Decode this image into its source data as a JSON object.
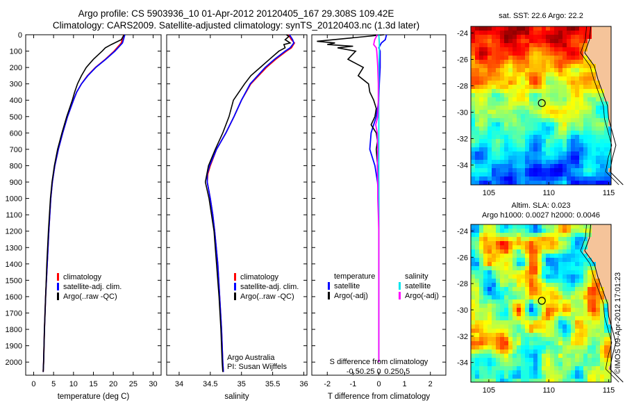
{
  "header": {
    "title_line1": "Argo profile: CS 5903936_10 01-Apr-2012 20120405_167 29.308S 109.42E",
    "title_line2": "Climatology: CARS2009. Satellite-adjusted climatology: synTS_20120403.nc (1.3d later)"
  },
  "colors": {
    "climatology": "#ff0000",
    "satellite": "#0000ff",
    "argo": "#000000",
    "salinity_satellite": "#00e5ee",
    "salinity_argo": "#ff00ff",
    "land": "#f5c49a"
  },
  "chart_data": [
    {
      "type": "line",
      "id": "temperature",
      "xlabel": "temperature (deg C)",
      "ylabel": "",
      "xlim": [
        -2,
        32
      ],
      "ylim": [
        2080,
        0
      ],
      "xticks": [
        0,
        5,
        10,
        15,
        20,
        25,
        30
      ],
      "yticks": [
        0,
        100,
        200,
        300,
        400,
        500,
        600,
        700,
        800,
        900,
        1000,
        1100,
        1200,
        1300,
        1400,
        1500,
        1600,
        1700,
        1800,
        1900,
        2000
      ],
      "legend": [
        "climatology",
        "satellite-adj. clim.",
        "Argo(..raw -QC)"
      ],
      "series": [
        {
          "name": "climatology",
          "color": "#ff0000",
          "depth": [
            0,
            50,
            100,
            150,
            200,
            250,
            300,
            350,
            400,
            500,
            600,
            700,
            800,
            900,
            1000,
            1200,
            1400,
            1600,
            1800,
            2000,
            2060
          ],
          "values": [
            22.6,
            22.0,
            20.2,
            18.0,
            15.5,
            13.5,
            12.0,
            10.8,
            10.0,
            8.5,
            7.3,
            6.2,
            5.3,
            4.7,
            4.3,
            3.8,
            3.4,
            3.0,
            2.7,
            2.5,
            2.4
          ]
        },
        {
          "name": "satellite-adj. clim.",
          "color": "#0000ff",
          "depth": [
            0,
            50,
            100,
            150,
            200,
            250,
            300,
            350,
            400,
            500,
            600,
            700,
            800,
            900,
            1000,
            1200,
            1400,
            1600,
            1800,
            2000,
            2060
          ],
          "values": [
            22.9,
            22.3,
            20.4,
            18.1,
            15.6,
            13.6,
            12.0,
            10.8,
            10.0,
            8.5,
            7.3,
            6.2,
            5.3,
            4.7,
            4.3,
            3.8,
            3.4,
            3.0,
            2.7,
            2.5,
            2.4
          ]
        },
        {
          "name": "Argo(..raw -QC)",
          "color": "#000000",
          "depth": [
            0,
            30,
            60,
            80,
            100,
            150,
            200,
            250,
            300,
            350,
            400,
            500,
            600,
            700,
            800,
            900,
            1000,
            1200,
            1400,
            1600,
            1800,
            2000,
            2060
          ],
          "values": [
            22.7,
            22.0,
            19.5,
            18.0,
            17.2,
            15.0,
            13.2,
            12.0,
            11.0,
            10.3,
            9.7,
            8.3,
            7.1,
            6.0,
            5.2,
            4.6,
            4.2,
            3.7,
            3.3,
            3.0,
            2.7,
            2.5,
            2.4
          ]
        }
      ],
      "annotations": []
    },
    {
      "type": "line",
      "id": "salinity",
      "xlabel": "salinity",
      "ylabel": "",
      "xlim": [
        33.8,
        36.05
      ],
      "ylim": [
        2080,
        0
      ],
      "xticks": [
        34,
        34.5,
        35,
        35.5,
        36
      ],
      "legend": [
        "climatology",
        "satellite-adj. clim.",
        "Argo(..raw -QC)"
      ],
      "series": [
        {
          "name": "climatology",
          "color": "#ff0000",
          "depth": [
            0,
            30,
            50,
            80,
            100,
            150,
            200,
            300,
            400,
            500,
            600,
            700,
            800,
            850,
            900,
            1000,
            1100,
            1200,
            1400,
            1600,
            1800,
            2000,
            2060
          ],
          "values": [
            35.75,
            35.8,
            35.85,
            35.8,
            35.72,
            35.55,
            35.4,
            35.15,
            35.0,
            34.88,
            34.75,
            34.6,
            34.5,
            34.46,
            34.45,
            34.5,
            34.54,
            34.57,
            34.62,
            34.65,
            34.68,
            34.7,
            34.71
          ]
        },
        {
          "name": "satellite-adj. clim.",
          "color": "#0000ff",
          "depth": [
            0,
            30,
            50,
            80,
            100,
            150,
            200,
            300,
            400,
            500,
            600,
            700,
            800,
            850,
            900,
            1000,
            1100,
            1200,
            1400,
            1600,
            1800,
            2000,
            2060
          ],
          "values": [
            35.77,
            35.82,
            35.84,
            35.78,
            35.7,
            35.53,
            35.38,
            35.14,
            35.0,
            34.88,
            34.75,
            34.6,
            34.49,
            34.45,
            34.45,
            34.5,
            34.54,
            34.57,
            34.62,
            34.65,
            34.68,
            34.7,
            34.71
          ]
        },
        {
          "name": "Argo(..raw -QC)",
          "color": "#000000",
          "depth": [
            0,
            10,
            30,
            50,
            60,
            80,
            100,
            150,
            200,
            250,
            300,
            400,
            500,
            600,
            700,
            800,
            900,
            1000,
            1100,
            1200,
            1400,
            1600,
            1800,
            2000,
            2060
          ],
          "values": [
            35.72,
            35.76,
            35.7,
            35.78,
            35.68,
            35.7,
            35.6,
            35.45,
            35.3,
            35.15,
            35.05,
            34.87,
            34.8,
            34.7,
            34.58,
            34.47,
            34.42,
            34.48,
            34.52,
            34.56,
            34.6,
            34.64,
            34.67,
            34.69,
            34.7
          ]
        }
      ],
      "annotations": [
        "Argo Australia",
        "PI: Susan Wijffels"
      ]
    },
    {
      "type": "line",
      "id": "difference",
      "xlabel": "T difference from climatology",
      "xlabel_top": "S difference from climatology",
      "xlim": [
        -2.6,
        2.6
      ],
      "ylim": [
        2080,
        0
      ],
      "xticks": [
        -2,
        -1,
        0,
        1,
        2
      ],
      "xticks_salinity": [
        -0.5,
        -0.25,
        0,
        0.25,
        0.5
      ],
      "legend_titles": [
        "temperature",
        "salinity"
      ],
      "legend": [
        "satellite",
        "Argo(-adj)",
        "satellite",
        "Argo(-adj)"
      ],
      "series": [
        {
          "name": "temperature satellite",
          "color": "#0000ff",
          "depth": [
            0,
            30,
            50,
            80,
            100,
            200,
            300,
            400,
            500,
            600,
            700,
            800,
            900,
            1000,
            1200,
            1500,
            1800,
            2000
          ],
          "values": [
            0.3,
            0.25,
            0.1,
            0.0,
            0.05,
            0.05,
            0.02,
            0.0,
            -0.1,
            -0.3,
            -0.35,
            -0.15,
            -0.05,
            0.0,
            0.0,
            0.0,
            0.0,
            0.0
          ]
        },
        {
          "name": "temperature Argo(-adj)",
          "color": "#000000",
          "depth": [
            0,
            40,
            50,
            60,
            70,
            80,
            100,
            150,
            200,
            250,
            300,
            350,
            400,
            450,
            500,
            550,
            600,
            650,
            700,
            800,
            900,
            1000,
            1200,
            1500,
            1800,
            2000
          ],
          "values": [
            0.2,
            -2.4,
            -1.7,
            -2.0,
            -1.0,
            -1.6,
            -0.9,
            -1.2,
            -0.6,
            -0.8,
            -0.4,
            -0.35,
            -0.2,
            -0.1,
            -0.15,
            -0.3,
            -0.1,
            -0.05,
            -0.1,
            -0.05,
            0.0,
            0.0,
            0.0,
            0.0,
            0.0,
            0.0
          ]
        },
        {
          "name": "salinity satellite",
          "color": "#00e5ee",
          "depth": [
            0,
            50,
            100,
            200,
            400,
            600,
            800,
            1000,
            1500,
            2000
          ],
          "values": [
            0.0,
            0.01,
            0.01,
            0.0,
            0.0,
            0.0,
            0.0,
            0.0,
            0.0,
            0.0
          ]
        },
        {
          "name": "salinity Argo(-adj)",
          "color": "#ff00ff",
          "depth": [
            0,
            30,
            60,
            80,
            100,
            150,
            200,
            300,
            400,
            500,
            550,
            600,
            700,
            800,
            900,
            1000,
            1100,
            1200,
            1400,
            1600,
            1800,
            2000
          ],
          "values": [
            -0.03,
            -0.08,
            -0.1,
            -0.05,
            -0.04,
            -0.03,
            -0.02,
            -0.01,
            -0.01,
            -0.02,
            -0.06,
            -0.03,
            -0.02,
            -0.03,
            -0.02,
            -0.02,
            -0.01,
            0.0,
            0.0,
            0.0,
            0.0,
            0.0
          ]
        }
      ]
    },
    {
      "type": "heatmap",
      "id": "sst-map",
      "title": "sat. SST: 22.6  Argo: 22.2",
      "xlim": [
        103.5,
        115.2
      ],
      "ylim": [
        -35.5,
        -23.5
      ],
      "xticks": [
        105,
        110,
        115
      ],
      "yticks": [
        -24,
        -26,
        -28,
        -30,
        -32,
        -34
      ],
      "marker": {
        "lon": 109.42,
        "lat": -29.308
      }
    },
    {
      "type": "heatmap",
      "id": "sla-map",
      "title": "Altim. SLA: 0.023",
      "subtitle": "Argo h1000: 0.0027 h2000: 0.0046",
      "xlim": [
        103.5,
        115.2
      ],
      "ylim": [
        -35.5,
        -23.5
      ],
      "xticks": [
        105,
        110,
        115
      ],
      "yticks": [
        -24,
        -26,
        -28,
        -30,
        -32,
        -34
      ],
      "marker": {
        "lon": 109.42,
        "lat": -29.308
      }
    }
  ],
  "footer": {
    "stamp": "©IMOS 09-Apr-2012 17:01:23"
  }
}
